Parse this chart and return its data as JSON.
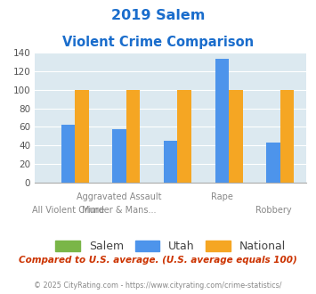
{
  "title_line1": "2019 Salem",
  "title_line2": "Violent Crime Comparison",
  "salem_values": [
    0,
    0,
    0,
    0,
    0
  ],
  "utah_values": [
    62,
    57,
    45,
    134,
    43
  ],
  "national_values": [
    100,
    100,
    100,
    100,
    100
  ],
  "salem_color": "#7ab648",
  "utah_color": "#4d94eb",
  "national_color": "#f5a623",
  "bg_color": "#dce9f0",
  "title_color": "#1a6dcc",
  "ylabel_max": 140,
  "yticks": [
    0,
    20,
    40,
    60,
    80,
    100,
    120,
    140
  ],
  "top_labels": [
    "",
    "Aggravated Assault",
    "",
    "Rape",
    ""
  ],
  "bot_labels": [
    "All Violent Crime",
    "Murder & Mans...",
    "",
    "",
    "Robbery"
  ],
  "footnote": "Compared to U.S. average. (U.S. average equals 100)",
  "copyright": "© 2025 CityRating.com - https://www.cityrating.com/crime-statistics/",
  "footnote_color": "#cc3300",
  "copyright_color": "#888888",
  "legend_labels": [
    "Salem",
    "Utah",
    "National"
  ],
  "bar_width": 0.27
}
